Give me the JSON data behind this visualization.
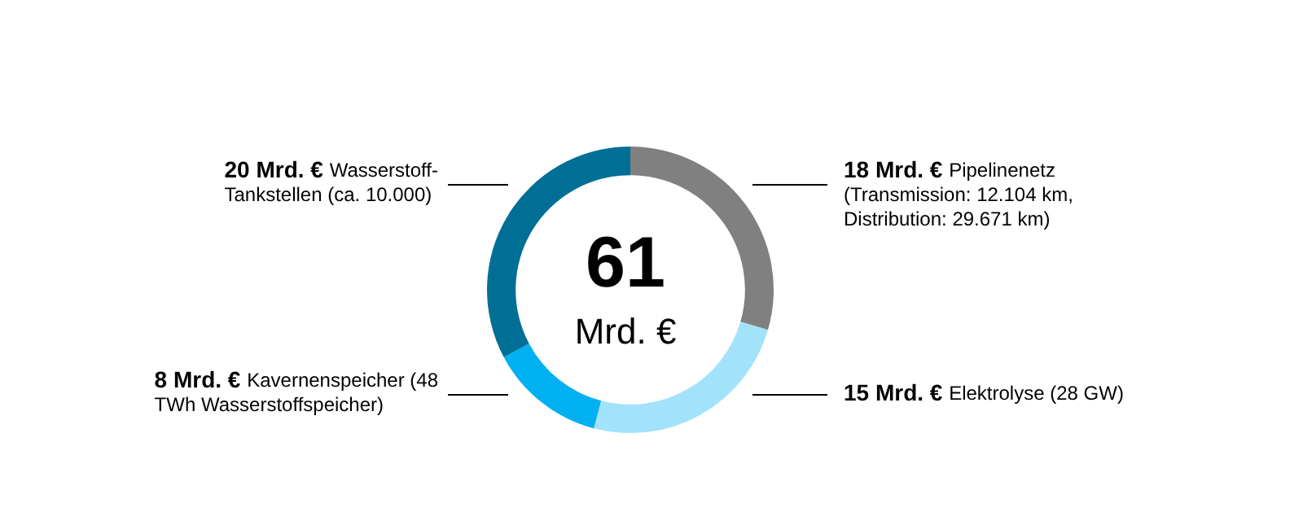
{
  "chart_data": {
    "type": "donut",
    "categories": [
      "Pipelinenetz (Transmission: 12.104 km, Distribution: 29.671 km)",
      "Elektrolyse (28 GW)",
      "Kavernenspeicher (48 TWh Wasserstoffspeicher)",
      "Wasserstoff-Tankstellen (ca. 10.000)"
    ],
    "values": [
      18,
      15,
      8,
      20
    ],
    "value_labels": [
      "18 Mrd. €",
      "15 Mrd. €",
      "8 Mrd. €",
      "20 Mrd. €"
    ],
    "colors": [
      "#808080",
      "#a3e2fb",
      "#00b0f0",
      "#006f96"
    ],
    "annotations": [
      "61",
      "Mrd. €"
    ],
    "legend": false
  }
}
